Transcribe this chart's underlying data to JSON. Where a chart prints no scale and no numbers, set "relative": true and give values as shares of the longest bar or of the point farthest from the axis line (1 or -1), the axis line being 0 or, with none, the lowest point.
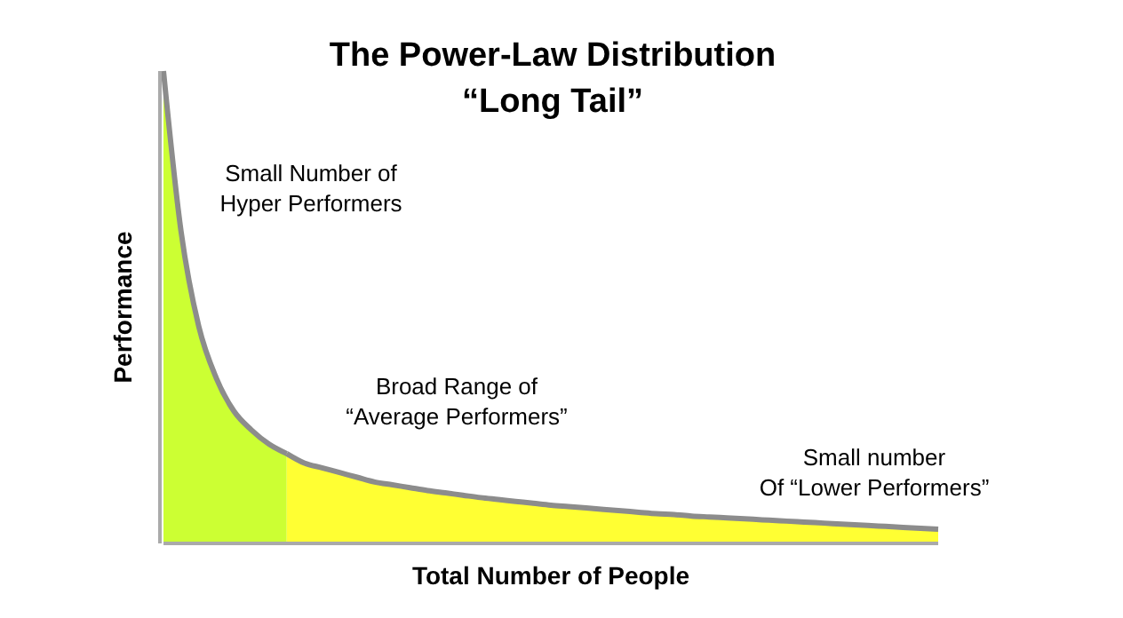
{
  "chart_data": {
    "type": "area",
    "title": "The Power-Law Distribution",
    "subtitle": "“Long Tail”",
    "xlabel": "Total Number  of People",
    "ylabel": "Performance",
    "relative": true,
    "categories": [
      null,
      null,
      null,
      null,
      null,
      null,
      null,
      null,
      null,
      null,
      null,
      null,
      null,
      null,
      null,
      null,
      null,
      null,
      null,
      null,
      null,
      null,
      null,
      null,
      null,
      null,
      null,
      null,
      null,
      null,
      null,
      null,
      null,
      null,
      null,
      null,
      null,
      null,
      null,
      null,
      null,
      null,
      null,
      null,
      null
    ],
    "series": [
      {
        "color": "#ccff33",
        "values": [
          1.0,
          0.66,
          0.46,
          0.35,
          0.28,
          0.24,
          0.21,
          0.19,
          null,
          null,
          null,
          null,
          null,
          null,
          null,
          null,
          null,
          null,
          null,
          null,
          null,
          null,
          null,
          null,
          null,
          null,
          null,
          null,
          null,
          null,
          null,
          null,
          null,
          null,
          null,
          null,
          null,
          null,
          null,
          null,
          null,
          null,
          null,
          null,
          null
        ]
      },
      {
        "color": "#ffff33",
        "values": [
          null,
          null,
          null,
          null,
          null,
          null,
          null,
          0.19,
          0.17,
          0.16,
          0.15,
          0.14,
          0.13,
          0.124,
          0.118,
          0.112,
          0.107,
          0.102,
          0.097,
          0.093,
          0.089,
          0.085,
          0.081,
          0.078,
          0.075,
          0.072,
          0.069,
          0.066,
          0.063,
          0.061,
          0.058,
          0.056,
          0.054,
          0.052,
          0.05,
          0.048,
          0.046,
          0.044,
          0.042,
          0.04,
          0.038,
          0.036,
          0.034,
          0.032,
          0.03
        ]
      }
    ],
    "annotations": [
      "Small Number of\nHyper Performers",
      "Broad Range of\n“Average Performers”",
      "Small number\nOf “Lower Performers”"
    ]
  }
}
